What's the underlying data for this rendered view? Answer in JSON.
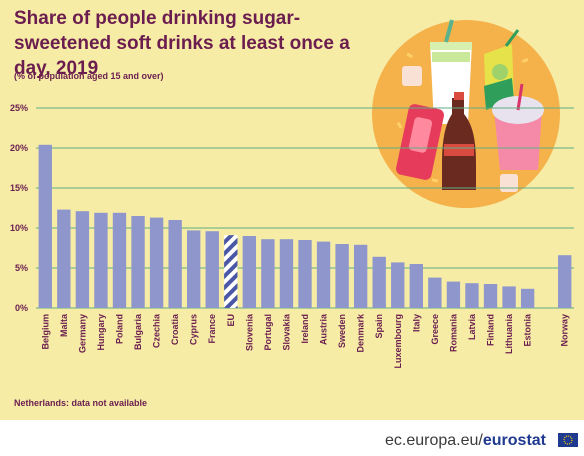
{
  "title": "Share of people drinking sugar-sweetened soft drinks at least once a day, 2019",
  "subtitle": "(% of population aged 15 and over)",
  "note": "Netherlands: data not available",
  "footer": {
    "domain": "ec.europa.eu/",
    "brand": "eurostat"
  },
  "colors": {
    "bar": "#8e96cc",
    "eu_stripe": "#4a56a6",
    "grid": "#5fae84",
    "text": "#6b1d4f",
    "background": "#f6eca6"
  },
  "chart_data": {
    "type": "bar",
    "title": "Share of people drinking sugar-sweetened soft drinks at least once a day, 2019",
    "subtitle": "(% of population aged 15 and over)",
    "xlabel": "",
    "ylabel": "",
    "ylim": [
      0,
      25
    ],
    "yticks": [
      "0%",
      "5%",
      "10%",
      "15%",
      "20%",
      "25%"
    ],
    "ytick_values": [
      0,
      5,
      10,
      15,
      20,
      25
    ],
    "grid": true,
    "highlighted_category": "EU",
    "categories": [
      "Belgium",
      "Malta",
      "Germany",
      "Hungary",
      "Poland",
      "Bulgaria",
      "Czechia",
      "Croatia",
      "Cyprus",
      "France",
      "EU",
      "Slovenia",
      "Portugal",
      "Slovakia",
      "Ireland",
      "Austria",
      "Sweden",
      "Denmark",
      "Spain",
      "Luxembourg",
      "Italy",
      "Greece",
      "Romania",
      "Latvia",
      "Finland",
      "Lithuania",
      "Estonia",
      "",
      "Norway"
    ],
    "values": [
      20.4,
      12.3,
      12.1,
      11.9,
      11.9,
      11.5,
      11.3,
      11.0,
      9.7,
      9.6,
      9.1,
      9.0,
      8.6,
      8.6,
      8.5,
      8.3,
      8.0,
      7.9,
      6.4,
      5.7,
      5.5,
      3.8,
      3.3,
      3.1,
      3.0,
      2.7,
      2.4,
      null,
      6.6
    ]
  }
}
